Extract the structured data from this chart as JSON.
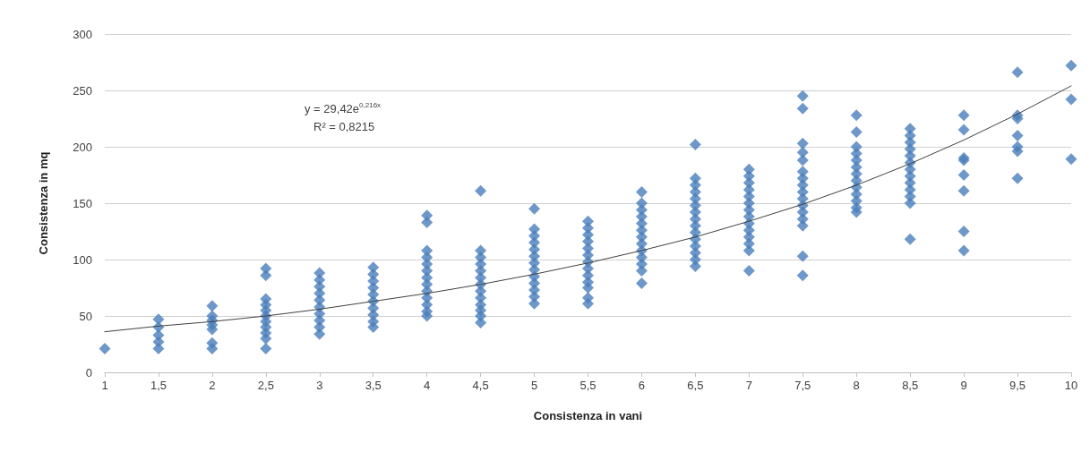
{
  "chart_data": {
    "type": "scatter",
    "xlabel": "Consistenza in vani",
    "ylabel": "Consistenza in mq",
    "annotations": [
      "y = 29,42e$^{0,216x}$",
      "R² = 0,8215"
    ],
    "xlim": [
      1,
      10
    ],
    "xticks": [
      1,
      {
        "value": 1.5,
        "label": "1,5"
      },
      2,
      {
        "value": 2.5,
        "label": "2,5"
      },
      3,
      {
        "value": 3.5,
        "label": "3,5"
      },
      4,
      {
        "value": 4.5,
        "label": "4,5"
      },
      5,
      {
        "value": 5.5,
        "label": "5,5"
      },
      6,
      {
        "value": 6.5,
        "label": "6,5"
      },
      7,
      {
        "value": 7.5,
        "label": "7,5"
      },
      8,
      {
        "value": 8.5,
        "label": "8,5"
      },
      9,
      {
        "value": 9.5,
        "label": "9,5"
      },
      10
    ],
    "ylim": [
      0,
      300
    ],
    "yticks": [
      0,
      50,
      100,
      150,
      200,
      250,
      300
    ],
    "grid": "y",
    "marker": "diamond",
    "series": [
      {
        "color": "#4a7ebb",
        "x": [
          1,
          1.5,
          1.5,
          1.5,
          1.5,
          1.5,
          2,
          2,
          2,
          2,
          2,
          2,
          2,
          2.5,
          2.5,
          2.5,
          2.5,
          2.5,
          2.5,
          2.5,
          2.5,
          2.5,
          2.5,
          2.5,
          3,
          3,
          3,
          3,
          3,
          3,
          3,
          3,
          3,
          3,
          3.5,
          3.5,
          3.5,
          3.5,
          3.5,
          3.5,
          3.5,
          3.5,
          3.5,
          3.5,
          4,
          4,
          4,
          4,
          4,
          4,
          4,
          4,
          4,
          4,
          4,
          4,
          4,
          4.5,
          4.5,
          4.5,
          4.5,
          4.5,
          4.5,
          4.5,
          4.5,
          4.5,
          4.5,
          4.5,
          4.5,
          4.5,
          5,
          5,
          5,
          5,
          5,
          5,
          5,
          5,
          5,
          5,
          5,
          5,
          5,
          5.5,
          5.5,
          5.5,
          5.5,
          5.5,
          5.5,
          5.5,
          5.5,
          5.5,
          5.5,
          5.5,
          5.5,
          5.5,
          6,
          6,
          6,
          6,
          6,
          6,
          6,
          6,
          6,
          6,
          6,
          6,
          6,
          6.5,
          6.5,
          6.5,
          6.5,
          6.5,
          6.5,
          6.5,
          6.5,
          6.5,
          6.5,
          6.5,
          6.5,
          6.5,
          6.5,
          6.5,
          7,
          7,
          7,
          7,
          7,
          7,
          7,
          7,
          7,
          7,
          7,
          7,
          7,
          7,
          7.5,
          7.5,
          7.5,
          7.5,
          7.5,
          7.5,
          7.5,
          7.5,
          7.5,
          7.5,
          7.5,
          7.5,
          7.5,
          7.5,
          7.5,
          7.5,
          8,
          8,
          8,
          8,
          8,
          8,
          8,
          8,
          8,
          8,
          8,
          8,
          8,
          8.5,
          8.5,
          8.5,
          8.5,
          8.5,
          8.5,
          8.5,
          8.5,
          8.5,
          8.5,
          8.5,
          8.5,
          8.5,
          9,
          9,
          9,
          9,
          9,
          9,
          9,
          9,
          9.5,
          9.5,
          9.5,
          9.5,
          9.5,
          9.5,
          9.5,
          10,
          10,
          10
        ],
        "values": [
          21,
          47,
          40,
          33,
          27,
          21,
          59,
          50,
          46,
          42,
          38,
          26,
          21,
          92,
          86,
          65,
          60,
          55,
          50,
          45,
          40,
          35,
          30,
          21,
          88,
          82,
          76,
          70,
          64,
          58,
          52,
          46,
          40,
          34,
          93,
          87,
          81,
          75,
          69,
          63,
          57,
          51,
          45,
          40,
          139,
          133,
          108,
          102,
          96,
          90,
          84,
          78,
          72,
          66,
          60,
          54,
          50,
          161,
          108,
          102,
          96,
          90,
          84,
          78,
          72,
          66,
          60,
          55,
          50,
          44,
          145,
          127,
          121,
          115,
          109,
          103,
          97,
          91,
          85,
          79,
          73,
          67,
          61,
          134,
          128,
          122,
          116,
          110,
          104,
          98,
          92,
          86,
          80,
          75,
          66,
          61,
          160,
          150,
          144,
          138,
          132,
          126,
          120,
          114,
          108,
          102,
          96,
          90,
          79,
          202,
          172,
          166,
          160,
          154,
          148,
          142,
          136,
          130,
          124,
          118,
          112,
          106,
          100,
          94,
          180,
          174,
          168,
          162,
          156,
          150,
          144,
          138,
          132,
          126,
          120,
          114,
          108,
          90,
          245,
          234,
          203,
          195,
          188,
          178,
          172,
          166,
          160,
          154,
          148,
          142,
          136,
          130,
          103,
          86,
          228,
          213,
          200,
          194,
          188,
          182,
          176,
          170,
          164,
          158,
          152,
          146,
          142,
          216,
          210,
          204,
          198,
          192,
          186,
          180,
          174,
          168,
          162,
          156,
          150,
          118,
          228,
          215,
          190,
          188,
          175,
          161,
          125,
          108,
          266,
          228,
          225,
          210,
          200,
          196,
          172,
          272,
          242,
          189
        ]
      },
      {
        "type": "line",
        "color": "#404040",
        "marker": "none",
        "line_style": "solid",
        "x": [
          1,
          1.5,
          2,
          2.5,
          3,
          3.5,
          4,
          4.5,
          5,
          5.5,
          6,
          6.5,
          7,
          7.5,
          8,
          8.5,
          9,
          9.5,
          10
        ],
        "values": [
          36,
          41,
          45,
          50,
          56,
          63,
          70,
          78,
          87,
          97,
          108,
          120,
          134,
          149,
          166,
          185,
          206,
          229,
          254
        ]
      }
    ]
  }
}
